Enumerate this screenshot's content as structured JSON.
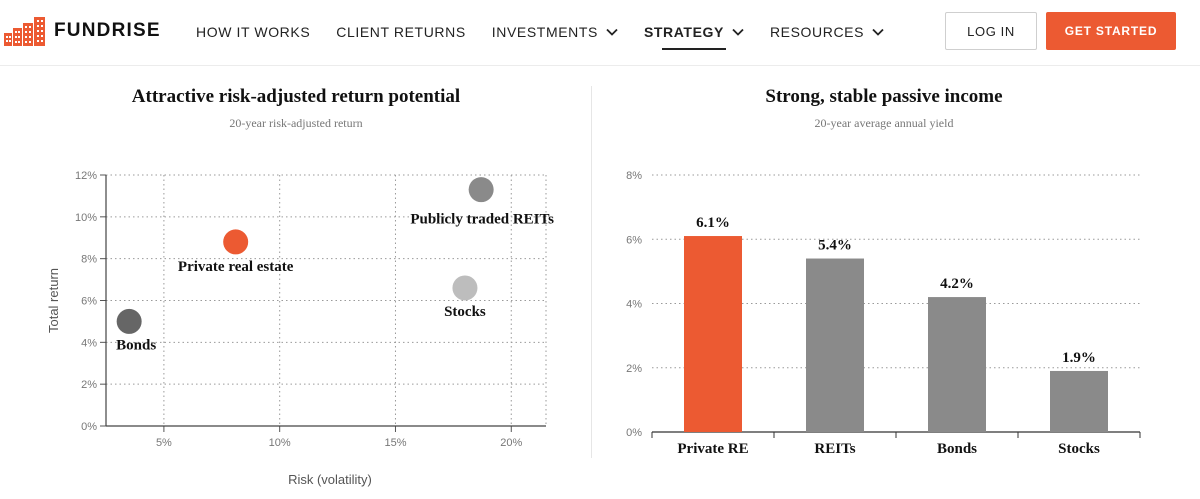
{
  "header": {
    "brand": "FUNDRISE",
    "nav": [
      {
        "label": "HOW IT WORKS",
        "dropdown": false,
        "active": false
      },
      {
        "label": "CLIENT RETURNS",
        "dropdown": false,
        "active": false
      },
      {
        "label": "INVESTMENTS",
        "dropdown": true,
        "active": false
      },
      {
        "label": "STRATEGY",
        "dropdown": true,
        "active": true
      },
      {
        "label": "RESOURCES",
        "dropdown": true,
        "active": false
      }
    ],
    "login_label": "LOG IN",
    "cta_label": "GET STARTED",
    "accent_color": "#ec5a32"
  },
  "chart_data": [
    {
      "type": "scatter",
      "title": "Attractive risk-adjusted return potential",
      "subtitle": "20-year risk-adjusted return",
      "xlabel": "Risk (volatility)",
      "ylabel": "Total return",
      "xlim": [
        2.5,
        21.5
      ],
      "ylim": [
        0,
        12
      ],
      "x_ticks": [
        5,
        10,
        15,
        20
      ],
      "y_ticks": [
        0,
        2,
        4,
        6,
        8,
        10,
        12
      ],
      "x_tick_labels": [
        "5%",
        "10%",
        "15%",
        "20%"
      ],
      "y_tick_labels": [
        "0%",
        "2%",
        "4%",
        "6%",
        "8%",
        "10%",
        "12%"
      ],
      "grid": true,
      "points": [
        {
          "label": "Bonds",
          "x": 3.5,
          "y": 5.0,
          "color": "#666666"
        },
        {
          "label": "Private real estate",
          "x": 8.1,
          "y": 8.8,
          "color": "#ec5a32"
        },
        {
          "label": "Publicly traded REITs",
          "x": 18.7,
          "y": 11.3,
          "color": "#8a8a8a"
        },
        {
          "label": "Stocks",
          "x": 18.0,
          "y": 6.6,
          "color": "#bdbdbd"
        }
      ]
    },
    {
      "type": "bar",
      "title": "Strong, stable passive income",
      "subtitle": "20-year average annual yield",
      "categories": [
        "Private RE",
        "REITs",
        "Bonds",
        "Stocks"
      ],
      "values": [
        6.1,
        5.4,
        4.2,
        1.9
      ],
      "value_labels": [
        "6.1%",
        "5.4%",
        "4.2%",
        "1.9%"
      ],
      "colors": [
        "#ec5a32",
        "#8a8a8a",
        "#8a8a8a",
        "#8a8a8a"
      ],
      "ylim": [
        0,
        8
      ],
      "y_ticks": [
        0,
        2,
        4,
        6,
        8
      ],
      "y_tick_labels": [
        "0%",
        "2%",
        "4%",
        "6%",
        "8%"
      ],
      "grid": true
    }
  ]
}
